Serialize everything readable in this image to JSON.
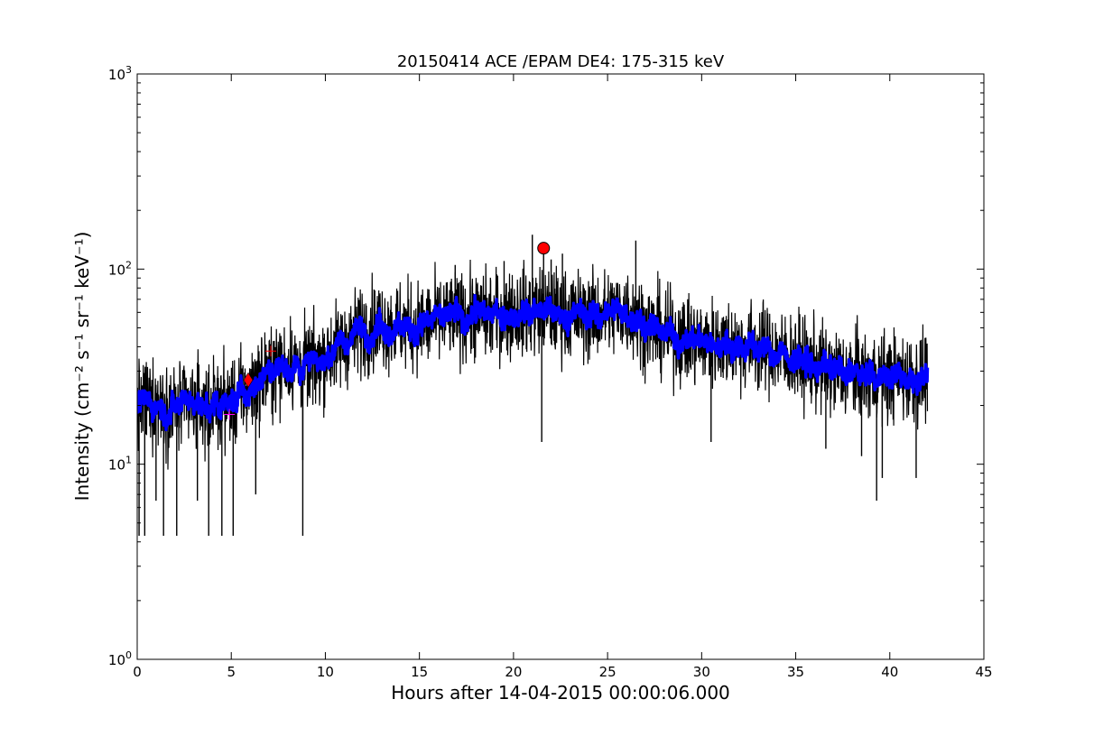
{
  "chart_data": {
    "type": "line",
    "title": "20150414 ACE /EPAM DE4: 175-315 keV",
    "xlabel": "Hours after 14-04-2015 00:00:06.000",
    "ylabel": "Intensity (cm⁻² s⁻¹ sr⁻¹ keV⁻¹)",
    "xlim": [
      0,
      45
    ],
    "ylim": [
      1,
      1000
    ],
    "yscale": "log",
    "grid": false,
    "legend": "none",
    "x_ticks": [
      0,
      5,
      10,
      15,
      20,
      25,
      30,
      35,
      40,
      45
    ],
    "x_tick_labels": [
      "0",
      "5",
      "10",
      "15",
      "20",
      "25",
      "30",
      "35",
      "40",
      "45"
    ],
    "y_ticks": [
      1,
      10,
      100,
      1000
    ],
    "y_tick_labels": [
      {
        "base": "10",
        "exp": "0"
      },
      {
        "base": "10",
        "exp": "1"
      },
      {
        "base": "10",
        "exp": "2"
      },
      {
        "base": "10",
        "exp": "3"
      }
    ],
    "series": [
      {
        "style": "raw",
        "color": "#000000",
        "x_range": [
          0,
          42
        ],
        "trend_x": [
          0,
          1,
          2,
          3,
          4,
          5,
          6,
          7,
          8,
          9,
          10,
          11,
          12,
          13,
          14,
          15,
          16,
          17,
          18,
          19,
          20,
          21,
          22,
          23,
          24,
          25,
          26,
          27,
          28,
          29,
          30,
          31,
          32,
          33,
          34,
          35,
          36,
          37,
          38,
          39,
          40,
          41,
          42
        ],
        "trend_y": [
          20,
          21,
          19,
          20,
          20,
          21,
          24,
          30,
          33,
          31,
          36,
          42,
          50,
          52,
          51,
          51,
          54,
          57,
          58,
          58,
          60,
          61,
          60,
          58,
          58,
          59,
          62,
          52,
          46,
          44,
          42,
          42,
          41,
          40,
          37,
          35,
          32,
          30,
          29,
          28,
          28,
          28,
          28
        ],
        "spikes": [
          {
            "x": 0.1,
            "y": 4.3
          },
          {
            "x": 0.4,
            "y": 4.3
          },
          {
            "x": 1.4,
            "y": 4.3
          },
          {
            "x": 2.1,
            "y": 4.3
          },
          {
            "x": 3.8,
            "y": 4.3
          },
          {
            "x": 4.5,
            "y": 4.3
          },
          {
            "x": 5.1,
            "y": 4.3
          },
          {
            "x": 8.8,
            "y": 4.3
          },
          {
            "x": 8.8,
            "y": 10.5
          },
          {
            "x": 21.5,
            "y": 13
          },
          {
            "x": 39.3,
            "y": 6.5
          },
          {
            "x": 39.6,
            "y": 8.5
          },
          {
            "x": 41.4,
            "y": 8.5
          },
          {
            "x": 21.0,
            "y": 150
          },
          {
            "x": 26.5,
            "y": 140
          },
          {
            "x": 21.6,
            "y": 128
          },
          {
            "x": 22.6,
            "y": 120
          },
          {
            "x": 19.5,
            "y": 110
          },
          {
            "x": 16.9,
            "y": 105
          },
          {
            "x": 22.0,
            "y": 112
          },
          {
            "x": 1.0,
            "y": 6.5
          },
          {
            "x": 3.2,
            "y": 6.5
          },
          {
            "x": 6.3,
            "y": 7
          },
          {
            "x": 30.5,
            "y": 13
          },
          {
            "x": 36.6,
            "y": 12
          },
          {
            "x": 38.5,
            "y": 11
          }
        ]
      },
      {
        "style": "smoothed",
        "color": "#0000ff",
        "x_range": [
          0,
          42
        ]
      }
    ],
    "markers": [
      {
        "shape": "diamond",
        "color": "#ff0000",
        "x": 5.9,
        "y": 27
      },
      {
        "shape": "circle",
        "color": "#ff0000",
        "x": 21.6,
        "y": 128
      },
      {
        "shape": "plus",
        "color": "#ff00ff",
        "x": 4.9,
        "y": 18
      },
      {
        "shape": "plus",
        "color": "#ff0000",
        "x": 7.1,
        "y": 38
      }
    ]
  }
}
